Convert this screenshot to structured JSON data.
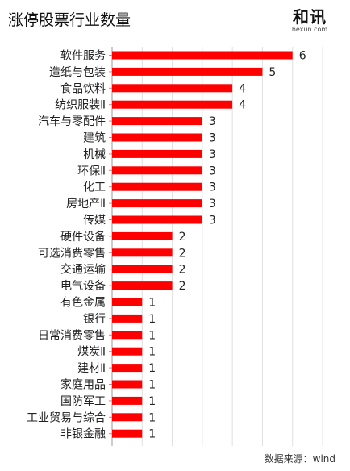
{
  "title": "涨停股票行业数量",
  "logo": {
    "text": "和讯",
    "url": "hexun.com"
  },
  "source": "数据来源：wind",
  "colors": {
    "bar": "#ff0000",
    "grid": "#e0e0e0",
    "axis": "#999999"
  },
  "chart_data": {
    "type": "bar",
    "orientation": "horizontal",
    "categories": [
      "软件服务",
      "造纸与包装",
      "食品饮料",
      "纺织服装Ⅱ",
      "汽车与零配件",
      "建筑",
      "机械",
      "环保Ⅱ",
      "化工",
      "房地产Ⅱ",
      "传媒",
      "硬件设备",
      "可选消费零售",
      "交通运输",
      "电气设备",
      "有色金属",
      "银行",
      "日常消费零售",
      "煤炭Ⅱ",
      "建材Ⅱ",
      "家庭用品",
      "国防军工",
      "工业贸易与综合",
      "非银金融"
    ],
    "values": [
      6,
      5,
      4,
      4,
      3,
      3,
      3,
      3,
      3,
      3,
      3,
      2,
      2,
      2,
      2,
      1,
      1,
      1,
      1,
      1,
      1,
      1,
      1,
      1
    ],
    "xlim": [
      0,
      7
    ],
    "grid": true
  }
}
